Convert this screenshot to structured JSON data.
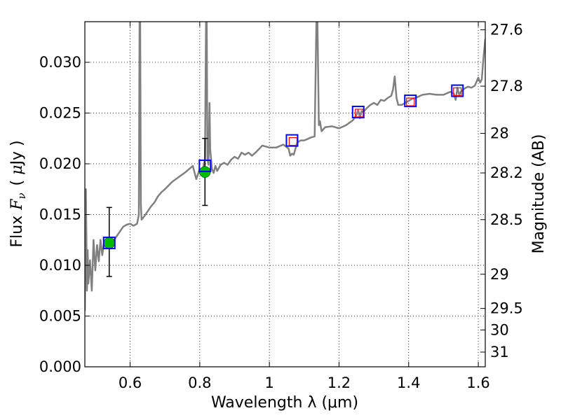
{
  "chart_data": {
    "type": "line",
    "xlabel": "Wavelength  λ (μm)",
    "ylabel": "Flux  F_ν  ( μJy )",
    "ylabel_parts": {
      "prefix": "Flux",
      "var": "F",
      "sub": "ν",
      "unit_open": "( ",
      "unit_mu": "μ",
      "unit_rest": "Jy )"
    },
    "y2label": "Magnitude (AB)",
    "xlim": [
      0.47,
      1.62
    ],
    "ylim": [
      0.0,
      0.034
    ],
    "grid": true,
    "x_ticks": [
      0.6,
      0.8,
      1.0,
      1.2,
      1.4,
      1.6
    ],
    "x_tick_labels": [
      "0.6",
      "0.8",
      "1",
      "1.2",
      "1.4",
      "1.6"
    ],
    "y_ticks": [
      0.0,
      0.005,
      0.01,
      0.015,
      0.02,
      0.025,
      0.03
    ],
    "y_tick_labels": [
      "0.000",
      "0.005",
      "0.010",
      "0.015",
      "0.020",
      "0.025",
      "0.030"
    ],
    "y2_ticks": [
      {
        "label": "27.6",
        "flux": 0.0332
      },
      {
        "label": "27.8",
        "flux": 0.02765
      },
      {
        "label": "28",
        "flux": 0.023
      },
      {
        "label": "28.2",
        "flux": 0.0191
      },
      {
        "label": "28.5",
        "flux": 0.0145
      },
      {
        "label": "29",
        "flux": 0.00912
      },
      {
        "label": "29.5",
        "flux": 0.00575
      },
      {
        "label": "30",
        "flux": 0.00363
      },
      {
        "label": "31",
        "flux": 0.00145
      }
    ],
    "series": [
      {
        "name": "model spectrum",
        "color": "#808080",
        "x": [
          0.47,
          0.473,
          0.476,
          0.478,
          0.48,
          0.485,
          0.49,
          0.495,
          0.5,
          0.505,
          0.51,
          0.515,
          0.52,
          0.525,
          0.53,
          0.54,
          0.55,
          0.56,
          0.57,
          0.58,
          0.59,
          0.6,
          0.61,
          0.62,
          0.625,
          0.627,
          0.629,
          0.631,
          0.633,
          0.64,
          0.65,
          0.66,
          0.67,
          0.68,
          0.69,
          0.7,
          0.72,
          0.74,
          0.76,
          0.78,
          0.79,
          0.8,
          0.805,
          0.81,
          0.815,
          0.818,
          0.82,
          0.822,
          0.825,
          0.828,
          0.83,
          0.835,
          0.84,
          0.845,
          0.85,
          0.855,
          0.86,
          0.87,
          0.88,
          0.89,
          0.9,
          0.91,
          0.92,
          0.93,
          0.94,
          0.95,
          0.96,
          0.98,
          1.0,
          1.02,
          1.04,
          1.055,
          1.06,
          1.065,
          1.07,
          1.08,
          1.09,
          1.1,
          1.12,
          1.13,
          1.135,
          1.138,
          1.142,
          1.145,
          1.15,
          1.16,
          1.18,
          1.2,
          1.22,
          1.24,
          1.25,
          1.255,
          1.26,
          1.265,
          1.27,
          1.28,
          1.29,
          1.3,
          1.31,
          1.32,
          1.33,
          1.34,
          1.35,
          1.355,
          1.36,
          1.365,
          1.37,
          1.38,
          1.39,
          1.4,
          1.41,
          1.42,
          1.44,
          1.46,
          1.48,
          1.5,
          1.52,
          1.53,
          1.535,
          1.54,
          1.545,
          1.55,
          1.56,
          1.57,
          1.58,
          1.59,
          1.6,
          1.605,
          1.61,
          1.615,
          1.62
        ],
        "y": [
          0.0055,
          0.0175,
          0.0075,
          0.0115,
          0.0082,
          0.0105,
          0.0075,
          0.0125,
          0.0095,
          0.012,
          0.0104,
          0.0125,
          0.011,
          0.0122,
          0.0118,
          0.0122,
          0.0123,
          0.0128,
          0.0133,
          0.0138,
          0.014,
          0.0141,
          0.0139,
          0.0141,
          0.015,
          0.034,
          0.034,
          0.016,
          0.0145,
          0.0148,
          0.0153,
          0.0158,
          0.0162,
          0.0168,
          0.0172,
          0.0175,
          0.0182,
          0.0187,
          0.0192,
          0.0198,
          0.0185,
          0.0195,
          0.0192,
          0.0196,
          0.0205,
          0.034,
          0.034,
          0.0205,
          0.0199,
          0.026,
          0.0215,
          0.0195,
          0.0191,
          0.0198,
          0.0193,
          0.0196,
          0.0199,
          0.0201,
          0.0199,
          0.0204,
          0.0207,
          0.0205,
          0.0211,
          0.0209,
          0.0211,
          0.0208,
          0.0211,
          0.0218,
          0.0216,
          0.0216,
          0.0219,
          0.0215,
          0.0208,
          0.021,
          0.0209,
          0.0221,
          0.0223,
          0.0223,
          0.0226,
          0.0227,
          0.034,
          0.034,
          0.0238,
          0.0242,
          0.0232,
          0.0236,
          0.0237,
          0.0235,
          0.0238,
          0.0243,
          0.0248,
          0.0253,
          0.0245,
          0.0252,
          0.0251,
          0.0255,
          0.0258,
          0.026,
          0.0258,
          0.0263,
          0.0262,
          0.0265,
          0.0267,
          0.0273,
          0.0286,
          0.0265,
          0.0258,
          0.0258,
          0.026,
          0.0262,
          0.0264,
          0.0265,
          0.0268,
          0.0269,
          0.0268,
          0.0268,
          0.0271,
          0.0269,
          0.0263,
          0.0275,
          0.0268,
          0.0271,
          0.0274,
          0.0276,
          0.0275,
          0.0277,
          0.0285,
          0.028,
          0.0283,
          0.0305,
          0.0323
        ]
      },
      {
        "name": "photometry (blue squares)",
        "color": "#0000ff",
        "x": [
          0.54,
          0.815,
          1.065,
          1.255,
          1.405,
          1.54
        ],
        "y": [
          0.0122,
          0.0198,
          0.0223,
          0.0251,
          0.0262,
          0.0272
        ]
      },
      {
        "name": "model photometry (red squares)",
        "color": "#ff0000",
        "x": [
          1.068,
          1.258,
          1.405,
          1.54
        ],
        "y": [
          0.0222,
          0.025,
          0.0261,
          0.0271
        ]
      },
      {
        "name": "observed (green circles)",
        "color": "#00bb00",
        "x": [
          0.54,
          0.815
        ],
        "y": [
          0.0122,
          0.0192
        ],
        "error_low": [
          0.0089,
          0.0159
        ],
        "error_high": [
          0.0157,
          0.0225
        ]
      }
    ]
  }
}
